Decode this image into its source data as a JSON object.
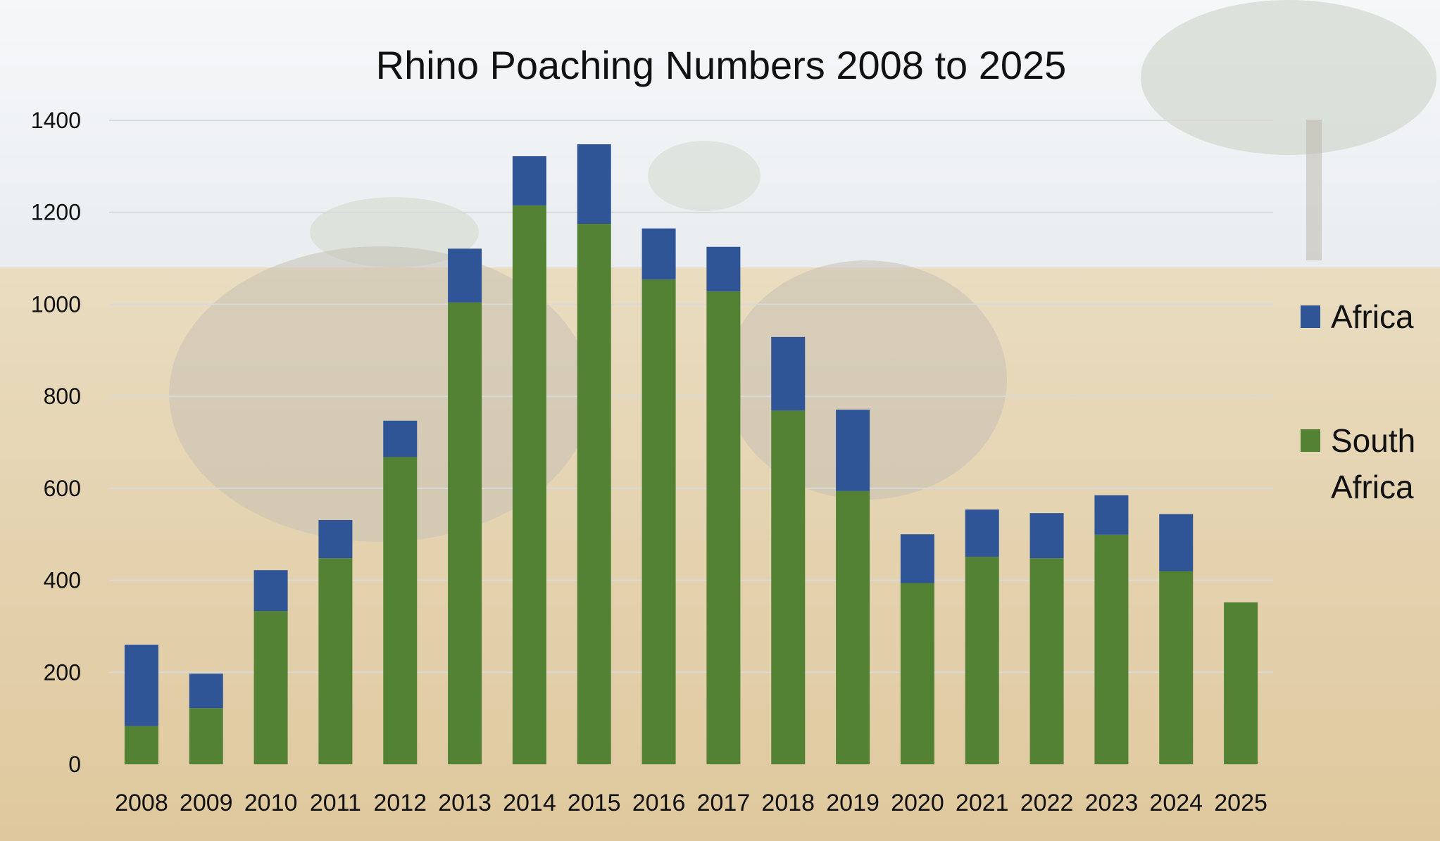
{
  "chart_data": {
    "type": "bar",
    "stacked": true,
    "title": "Rhino Poaching Numbers 2008 to 2025",
    "xlabel": "",
    "ylabel": "",
    "ylim": [
      0,
      1400
    ],
    "yticks": [
      "0",
      "200",
      "400",
      "600",
      "800",
      "1000",
      "1200",
      "1400"
    ],
    "grid": true,
    "legend_position": "right",
    "categories": [
      "2008",
      "2009",
      "2010",
      "2011",
      "2012",
      "2013",
      "2014",
      "2015",
      "2016",
      "2017",
      "2018",
      "2019",
      "2020",
      "2021",
      "2022",
      "2023",
      "2024",
      "2025"
    ],
    "series": [
      {
        "name": "South Africa",
        "color": "#548235",
        "values": [
          83,
          122,
          333,
          448,
          668,
          1004,
          1215,
          1175,
          1054,
          1028,
          769,
          594,
          394,
          451,
          448,
          499,
          420,
          352
        ]
      },
      {
        "name": "Africa",
        "color": "#2f5597",
        "values": [
          177,
          75,
          89,
          83,
          79,
          117,
          107,
          173,
          111,
          97,
          160,
          177,
          106,
          103,
          98,
          86,
          124,
          0
        ]
      }
    ],
    "legend_order": [
      "Africa",
      "South Africa"
    ]
  }
}
